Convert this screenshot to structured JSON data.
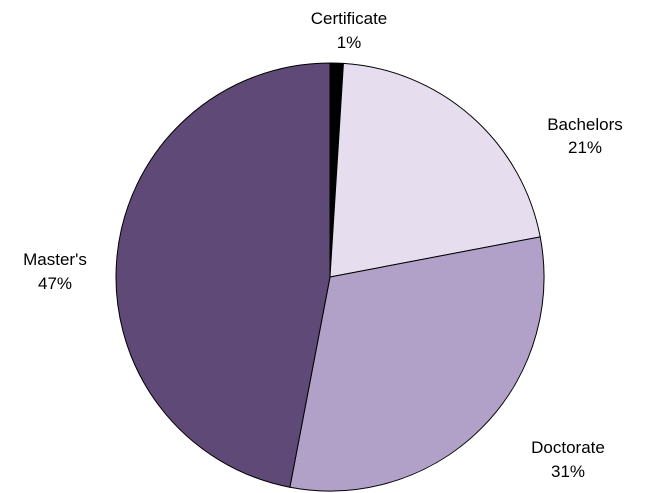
{
  "chart_data": {
    "type": "pie",
    "title": "",
    "start": "top",
    "direction": "clockwise",
    "legend": "none",
    "slices": [
      {
        "label": "Certificate",
        "value": 1,
        "pct_label": "1%",
        "color": "#000000"
      },
      {
        "label": "Bachelors",
        "value": 21,
        "pct_label": "21%",
        "color": "#E6DEEE"
      },
      {
        "label": "Doctorate",
        "value": 31,
        "pct_label": "31%",
        "color": "#B1A1C9"
      },
      {
        "label": "Master's",
        "value": 47,
        "pct_label": "47%",
        "color": "#5E4977"
      }
    ]
  }
}
